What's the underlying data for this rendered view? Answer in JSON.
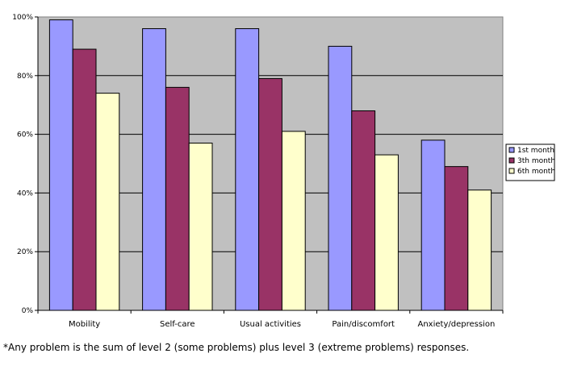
{
  "chart_data": {
    "type": "bar",
    "categories": [
      "Mobility",
      "Self-care",
      "Usual activities",
      "Pain/discomfort",
      "Anxiety/depression"
    ],
    "series": [
      {
        "name": "1st month",
        "color": "#9999ff",
        "values": [
          99,
          96,
          96,
          90,
          58
        ]
      },
      {
        "name": "3th month",
        "color": "#993366",
        "values": [
          89,
          76,
          79,
          68,
          49
        ]
      },
      {
        "name": "6th month",
        "color": "#ffffcc",
        "values": [
          74,
          57,
          61,
          53,
          41
        ]
      }
    ],
    "yticks": [
      "0%",
      "20%",
      "40%",
      "60%",
      "80%",
      "100%"
    ],
    "ylim": [
      0,
      100
    ],
    "grid": true,
    "plot_background": "#c0c0c0",
    "legend_position": "right",
    "title": "",
    "xlabel": "",
    "ylabel": ""
  },
  "footnote": "*Any problem is the sum of level 2 (some problems) plus level 3 (extreme problems) responses."
}
